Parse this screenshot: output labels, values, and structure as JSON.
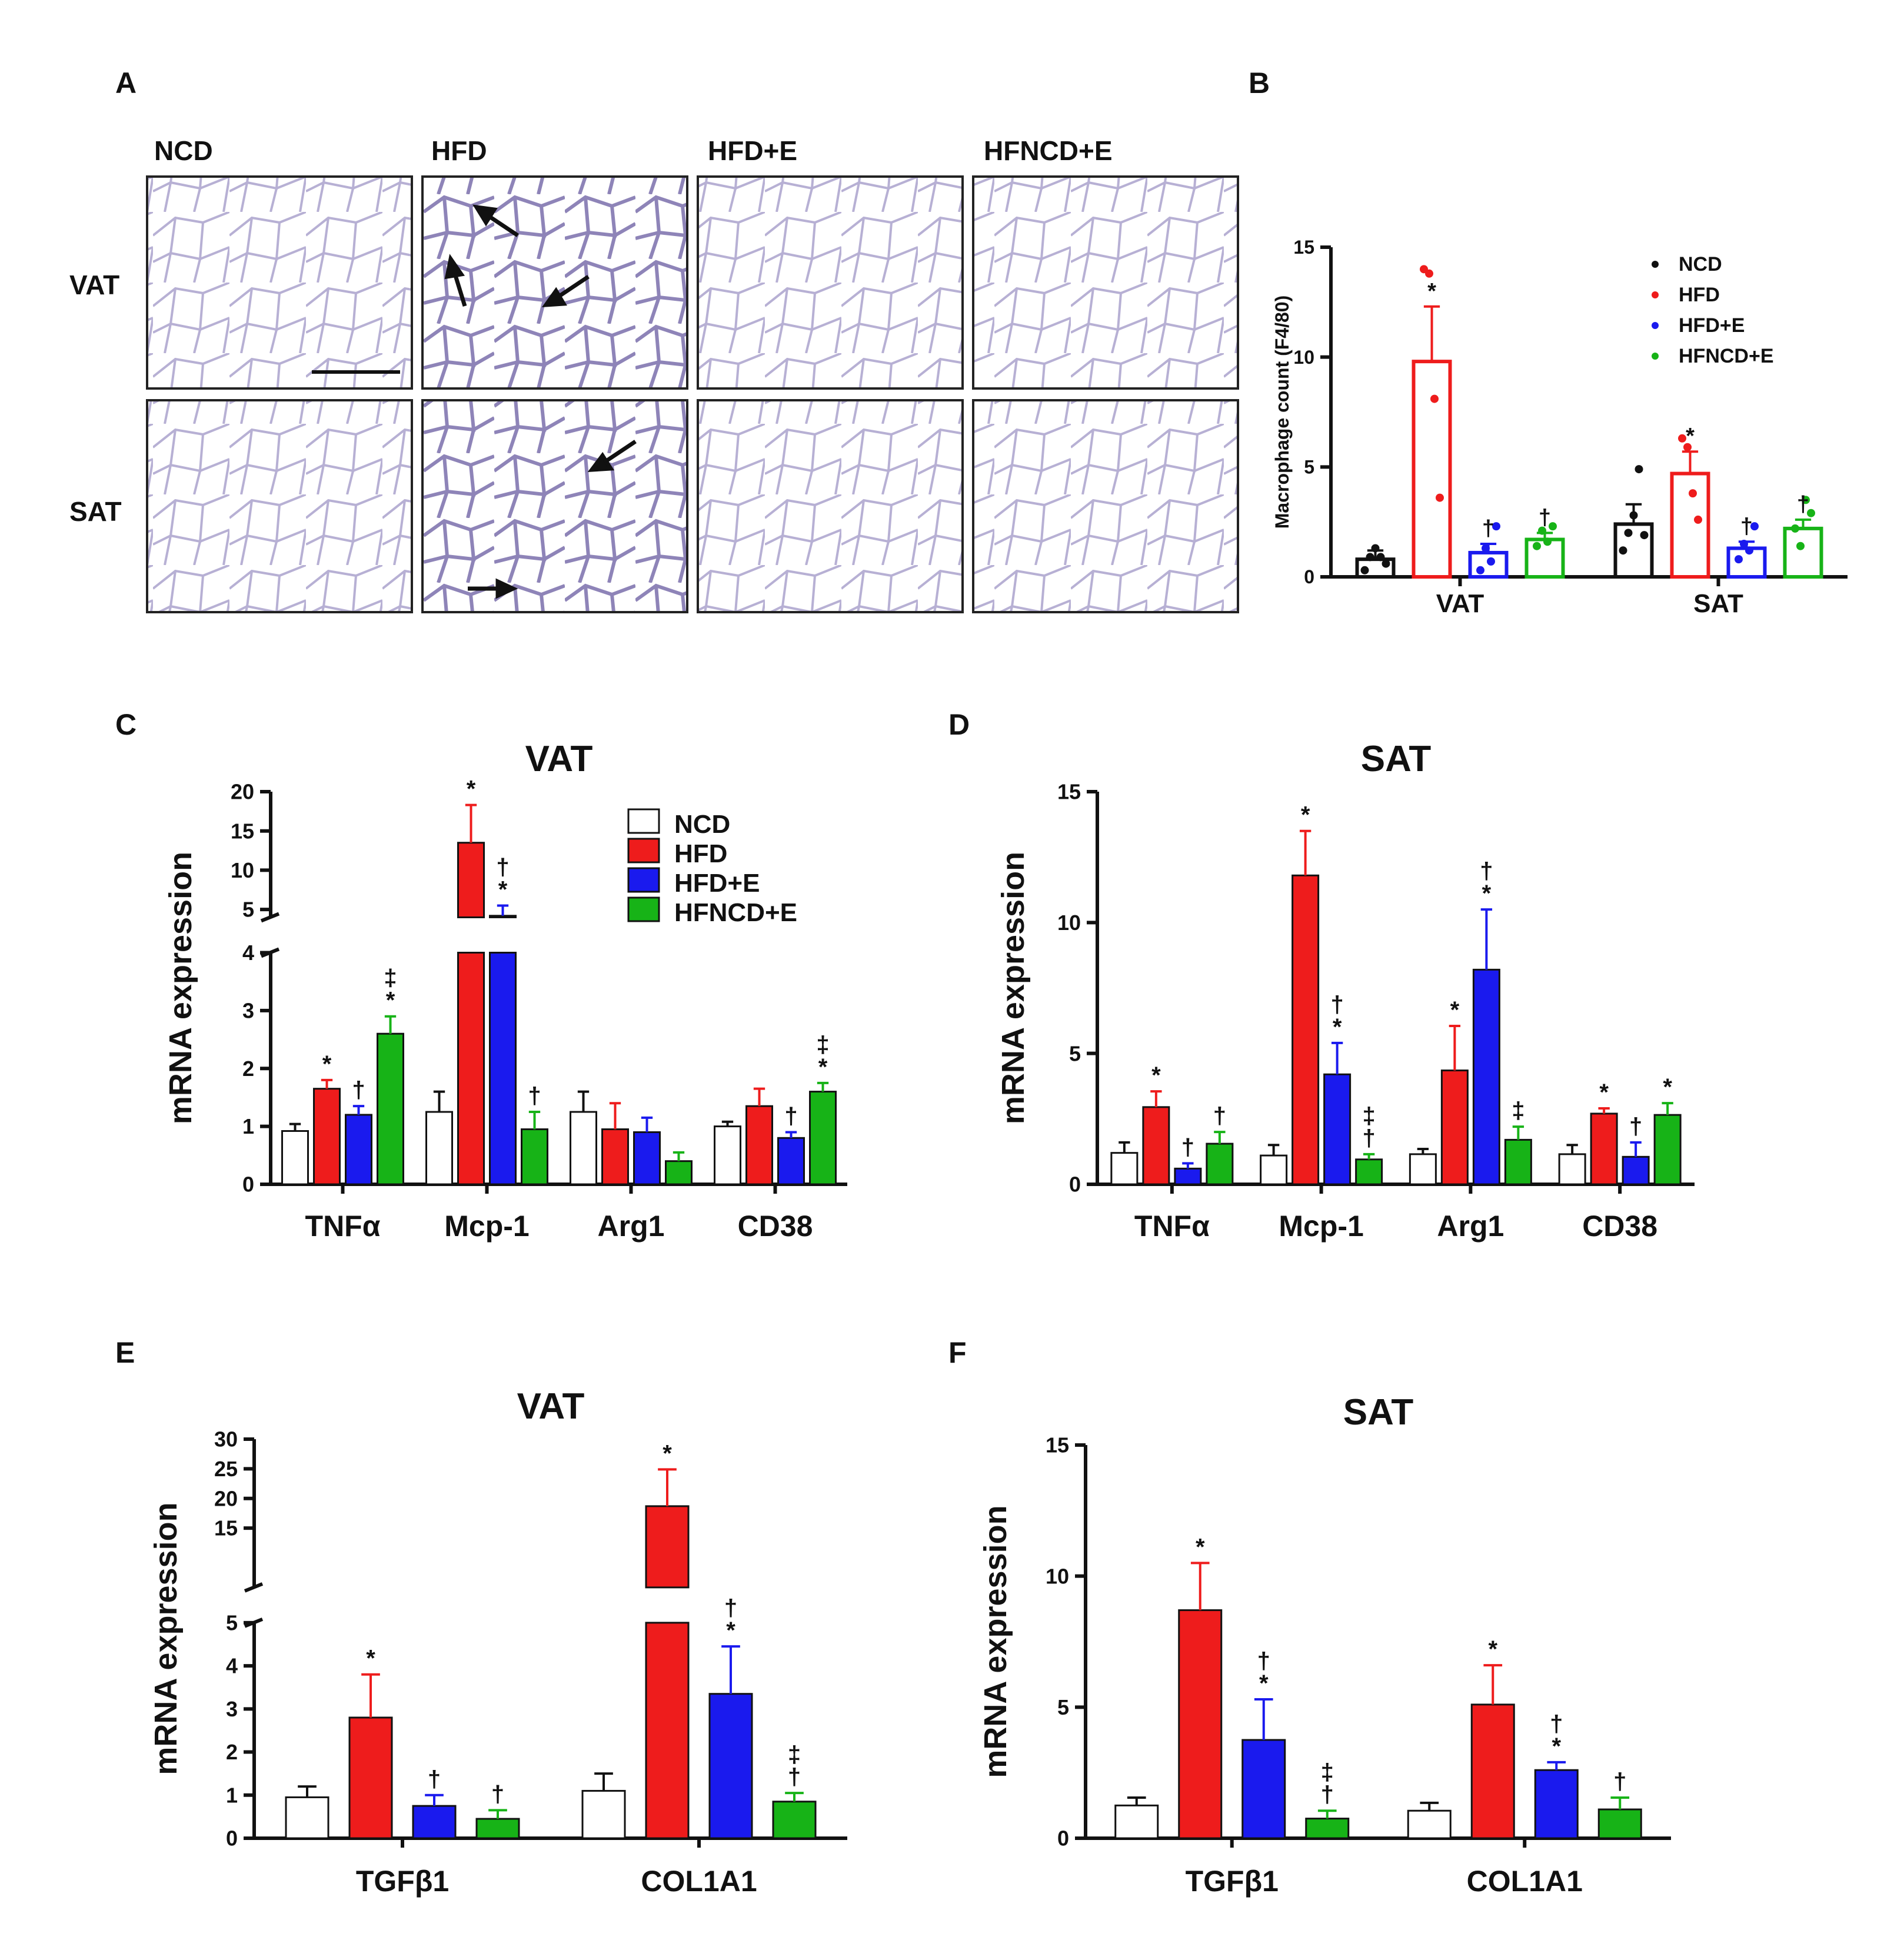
{
  "colors": {
    "NCD": "#ffffff",
    "HFD": "#ee1c1c",
    "HFD+E": "#1a1aee",
    "HFNCD+E": "#17b317",
    "axis": "#111111"
  },
  "panels": {
    "A": "A",
    "B": "B",
    "C": "C",
    "D": "D",
    "E": "E",
    "F": "F"
  },
  "histology": {
    "columns": [
      "NCD",
      "HFD",
      "HFD+E",
      "HFNCD+E"
    ],
    "rows": [
      "VAT",
      "SAT"
    ]
  },
  "chart_data": [
    {
      "panel": "B",
      "type": "bar",
      "title": "",
      "ylabel": "Macrophage count (F4/80)",
      "categories": [
        "VAT",
        "SAT"
      ],
      "ylim": [
        0,
        15
      ],
      "yticks": [
        0,
        5,
        10,
        15
      ],
      "legend": [
        "NCD",
        "HFD",
        "HFD+E",
        "HFNCD+E"
      ],
      "series": [
        {
          "name": "NCD",
          "values": [
            0.8,
            2.4
          ],
          "errors": [
            0.4,
            0.9
          ],
          "annotations": [
            "",
            ""
          ],
          "points": [
            [
              0.3,
              0.9,
              1.3,
              0.9,
              0.6
            ],
            [
              1.2,
              2.0,
              2.8,
              4.9,
              1.9
            ]
          ]
        },
        {
          "name": "HFD",
          "values": [
            9.8,
            4.7
          ],
          "errors": [
            2.5,
            1.0
          ],
          "annotations": [
            "*",
            "*"
          ],
          "points": [
            [
              14.0,
              13.8,
              8.1,
              3.6
            ],
            [
              6.3,
              5.9,
              3.8,
              2.6
            ]
          ]
        },
        {
          "name": "HFD+E",
          "values": [
            1.1,
            1.3
          ],
          "errors": [
            0.4,
            0.3
          ],
          "annotations": [
            "†",
            "†"
          ],
          "points": [
            [
              0.3,
              1.3,
              0.7,
              2.3
            ],
            [
              0.8,
              1.5,
              1.2,
              2.3
            ]
          ]
        },
        {
          "name": "HFNCD+E",
          "values": [
            1.7,
            2.2
          ],
          "errors": [
            0.3,
            0.4
          ],
          "annotations": [
            "†",
            "†"
          ],
          "points": [
            [
              1.4,
              2.1,
              1.6,
              2.3
            ],
            [
              2.2,
              1.4,
              3.5,
              2.9
            ]
          ]
        }
      ]
    },
    {
      "panel": "C",
      "type": "bar",
      "title": "VAT",
      "ylabel": "mRNA expression",
      "categories": [
        "TNFα",
        "Mcp-1",
        "Arg1",
        "CD38"
      ],
      "broken_axis": {
        "lower": [
          0,
          4
        ],
        "upper": [
          4,
          20
        ],
        "lower_ticks": [
          0,
          1,
          2,
          3,
          4
        ],
        "upper_ticks": [
          5,
          10,
          15,
          20
        ]
      },
      "legend": [
        "NCD",
        "HFD",
        "HFD+E",
        "HFNCD+E"
      ],
      "series": [
        {
          "name": "NCD",
          "values": [
            0.92,
            1.25,
            1.25,
            1.0
          ],
          "errors": [
            0.12,
            0.35,
            0.35,
            0.08
          ],
          "annotations": [
            "",
            "",
            "",
            ""
          ]
        },
        {
          "name": "HFD",
          "values": [
            1.65,
            13.5,
            0.95,
            1.35
          ],
          "errors": [
            0.15,
            4.8,
            0.45,
            0.3
          ],
          "annotations": [
            "*",
            "*",
            "",
            ""
          ]
        },
        {
          "name": "HFD+E",
          "values": [
            1.2,
            4.2,
            0.9,
            0.8
          ],
          "errors": [
            0.15,
            1.3,
            0.25,
            0.1
          ],
          "annotations": [
            "†",
            "†\n*",
            "",
            "†"
          ]
        },
        {
          "name": "HFNCD+E",
          "values": [
            2.6,
            0.95,
            0.4,
            1.6
          ],
          "errors": [
            0.3,
            0.3,
            0.15,
            0.15
          ],
          "annotations": [
            "‡\n*",
            "†",
            "",
            "‡\n*"
          ]
        }
      ]
    },
    {
      "panel": "D",
      "type": "bar",
      "title": "SAT",
      "ylabel": "mRNA expression",
      "categories": [
        "TNFα",
        "Mcp-1",
        "Arg1",
        "CD38"
      ],
      "ylim": [
        0,
        15
      ],
      "yticks": [
        0,
        5,
        10,
        15
      ],
      "series": [
        {
          "name": "NCD",
          "values": [
            1.2,
            1.1,
            1.15,
            1.15
          ],
          "errors": [
            0.4,
            0.4,
            0.2,
            0.35
          ],
          "annotations": [
            "",
            "",
            "",
            ""
          ]
        },
        {
          "name": "HFD",
          "values": [
            2.95,
            11.8,
            4.35,
            2.7
          ],
          "errors": [
            0.6,
            1.7,
            1.7,
            0.2
          ],
          "annotations": [
            "*",
            "*",
            "*",
            "*"
          ]
        },
        {
          "name": "HFD+E",
          "values": [
            0.6,
            4.2,
            8.2,
            1.05
          ],
          "errors": [
            0.2,
            1.2,
            2.3,
            0.55
          ],
          "annotations": [
            "†",
            "†\n*",
            "†\n*",
            "†"
          ]
        },
        {
          "name": "HFNCD+E",
          "values": [
            1.55,
            0.95,
            1.7,
            2.65
          ],
          "errors": [
            0.45,
            0.2,
            0.5,
            0.45
          ],
          "annotations": [
            "†",
            "‡\n†",
            "‡",
            "*"
          ]
        }
      ]
    },
    {
      "panel": "E",
      "type": "bar",
      "title": "VAT",
      "ylabel": "mRNA expression",
      "categories": [
        "TGFβ1",
        "COL1A1"
      ],
      "broken_axis": {
        "lower": [
          0,
          5
        ],
        "upper": [
          5,
          30
        ],
        "lower_ticks": [
          0,
          1,
          2,
          3,
          4,
          5
        ],
        "upper_ticks": [
          15,
          20,
          25,
          30
        ]
      },
      "series": [
        {
          "name": "NCD",
          "values": [
            0.95,
            1.1
          ],
          "errors": [
            0.25,
            0.4
          ],
          "annotations": [
            "",
            ""
          ]
        },
        {
          "name": "HFD",
          "values": [
            2.8,
            18.7
          ],
          "errors": [
            1.0,
            6.2
          ],
          "annotations": [
            "*",
            "*"
          ]
        },
        {
          "name": "HFD+E",
          "values": [
            0.75,
            3.35
          ],
          "errors": [
            0.25,
            1.1
          ],
          "annotations": [
            "†",
            "†\n*"
          ]
        },
        {
          "name": "HFNCD+E",
          "values": [
            0.45,
            0.85
          ],
          "errors": [
            0.2,
            0.2
          ],
          "annotations": [
            "†",
            "‡\n†"
          ]
        }
      ]
    },
    {
      "panel": "F",
      "type": "bar",
      "title": "SAT",
      "ylabel": "mRNA expression",
      "categories": [
        "TGFβ1",
        "COL1A1"
      ],
      "ylim": [
        0,
        15
      ],
      "yticks": [
        0,
        5,
        10,
        15
      ],
      "series": [
        {
          "name": "NCD",
          "values": [
            1.25,
            1.05
          ],
          "errors": [
            0.3,
            0.3
          ],
          "annotations": [
            "",
            ""
          ]
        },
        {
          "name": "HFD",
          "values": [
            8.7,
            5.1
          ],
          "errors": [
            1.8,
            1.5
          ],
          "annotations": [
            "*",
            "*"
          ]
        },
        {
          "name": "HFD+E",
          "values": [
            3.75,
            2.6
          ],
          "errors": [
            1.55,
            0.3
          ],
          "annotations": [
            "†\n*",
            "†\n*"
          ]
        },
        {
          "name": "HFNCD+E",
          "values": [
            0.75,
            1.1
          ],
          "errors": [
            0.3,
            0.45
          ],
          "annotations": [
            "‡\n†",
            "†"
          ]
        }
      ]
    }
  ]
}
